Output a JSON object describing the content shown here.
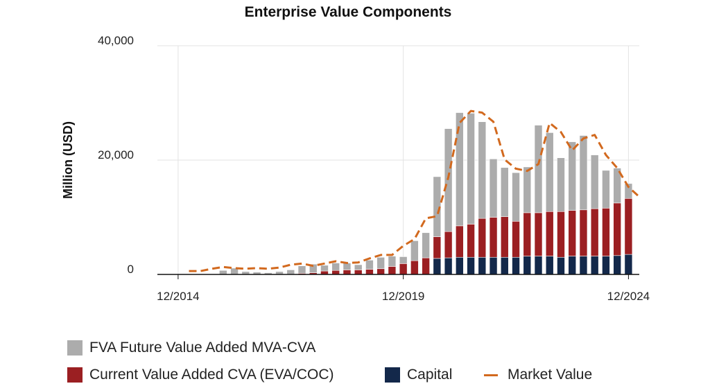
{
  "colors": {
    "fva": "#acacac",
    "cva": "#9b1f22",
    "capital": "#13284a",
    "market": "#d2691e",
    "grid": "#e3e3e3",
    "axis": "#111111"
  },
  "legend": [
    {
      "key": "fva",
      "label": "FVA Future Value Added MVA-CVA",
      "kind": "swatch"
    },
    {
      "key": "cva",
      "label": "Current Value Added CVA (EVA/COC)",
      "kind": "swatch"
    },
    {
      "key": "capital",
      "label": "Capital",
      "kind": "swatch"
    },
    {
      "key": "market",
      "label": "Market Value",
      "kind": "dash"
    }
  ],
  "chart_data": {
    "type": "bar",
    "stacked": true,
    "title": "Enterprise Value Components",
    "ylabel": "Million (USD)",
    "xlabel": "",
    "ylim": [
      0,
      40000
    ],
    "yticks": [
      {
        "value": 0,
        "label": "0"
      },
      {
        "value": 20000,
        "label": "20,000"
      },
      {
        "value": 40000,
        "label": "40,000"
      }
    ],
    "xlim": [
      2014.5,
      2025.2
    ],
    "xticks": [
      {
        "value": 2014.96,
        "label": "12/2014"
      },
      {
        "value": 2019.96,
        "label": "12/2019"
      },
      {
        "value": 2024.96,
        "label": "12/2024"
      }
    ],
    "grid": true,
    "legend_position": "bottom",
    "x": [
      2015.96,
      2016.21,
      2016.46,
      2016.71,
      2016.96,
      2017.21,
      2017.46,
      2017.71,
      2017.96,
      2018.21,
      2018.46,
      2018.71,
      2018.96,
      2019.21,
      2019.46,
      2019.71,
      2019.96,
      2020.21,
      2020.46,
      2020.71,
      2020.96,
      2021.21,
      2021.46,
      2021.71,
      2021.96,
      2022.21,
      2022.46,
      2022.71,
      2022.96,
      2023.21,
      2023.46,
      2023.71,
      2023.96,
      2024.21,
      2024.46,
      2024.71,
      2024.96
    ],
    "series": [
      {
        "key": "capital",
        "name": "Capital",
        "values": [
          0,
          0,
          0,
          0,
          0,
          0,
          0,
          0,
          0,
          0,
          0,
          0,
          0,
          0,
          0,
          0,
          0,
          0,
          0,
          2800,
          2900,
          3000,
          3000,
          3000,
          3000,
          3000,
          3000,
          3200,
          3200,
          3200,
          3000,
          3200,
          3200,
          3200,
          3200,
          3300,
          3500
        ]
      },
      {
        "key": "cva",
        "name": "Current Value Added CVA (EVA/COC)",
        "values": [
          0,
          0,
          0,
          0,
          0,
          0,
          0,
          200,
          300,
          600,
          700,
          800,
          800,
          900,
          1000,
          1400,
          1900,
          2400,
          2900,
          3800,
          4600,
          5500,
          5800,
          6800,
          7000,
          7100,
          6300,
          7600,
          7600,
          7800,
          8000,
          8000,
          8100,
          8300,
          8400,
          9200,
          9800
        ]
      },
      {
        "key": "fva",
        "name": "FVA Future Value Added MVA-CVA",
        "values": [
          700,
          1100,
          500,
          400,
          300,
          500,
          800,
          1300,
          1500,
          1000,
          1300,
          1200,
          900,
          1600,
          2000,
          1800,
          1200,
          3500,
          4400,
          10500,
          18000,
          19800,
          19400,
          16900,
          10200,
          8600,
          8500,
          8000,
          15300,
          13800,
          9400,
          12000,
          13000,
          9400,
          6600,
          6100,
          2600
        ]
      },
      {
        "key": "market",
        "name": "Market Value",
        "kind": "line",
        "x": [
          2015.2,
          2015.46,
          2015.71,
          2015.96,
          2016.21,
          2016.46,
          2016.71,
          2016.96,
          2017.21,
          2017.46,
          2017.71,
          2017.96,
          2018.21,
          2018.46,
          2018.71,
          2018.96,
          2019.21,
          2019.46,
          2019.71,
          2019.96,
          2020.21,
          2020.46,
          2020.71,
          2020.96,
          2021.21,
          2021.46,
          2021.71,
          2021.96,
          2022.21,
          2022.46,
          2022.71,
          2022.96,
          2023.21,
          2023.46,
          2023.71,
          2023.96,
          2024.21,
          2024.46,
          2024.71,
          2024.96,
          2025.21
        ],
        "values": [
          600,
          600,
          1000,
          1300,
          1100,
          1000,
          1100,
          1000,
          1200,
          1700,
          1900,
          1500,
          1900,
          2300,
          2000,
          2100,
          2800,
          3400,
          3400,
          5000,
          6200,
          9800,
          10200,
          17000,
          26500,
          28600,
          28300,
          26700,
          20100,
          18500,
          18100,
          19300,
          26500,
          24900,
          21700,
          23800,
          24400,
          20900,
          18600,
          15300,
          13500
        ]
      }
    ]
  }
}
